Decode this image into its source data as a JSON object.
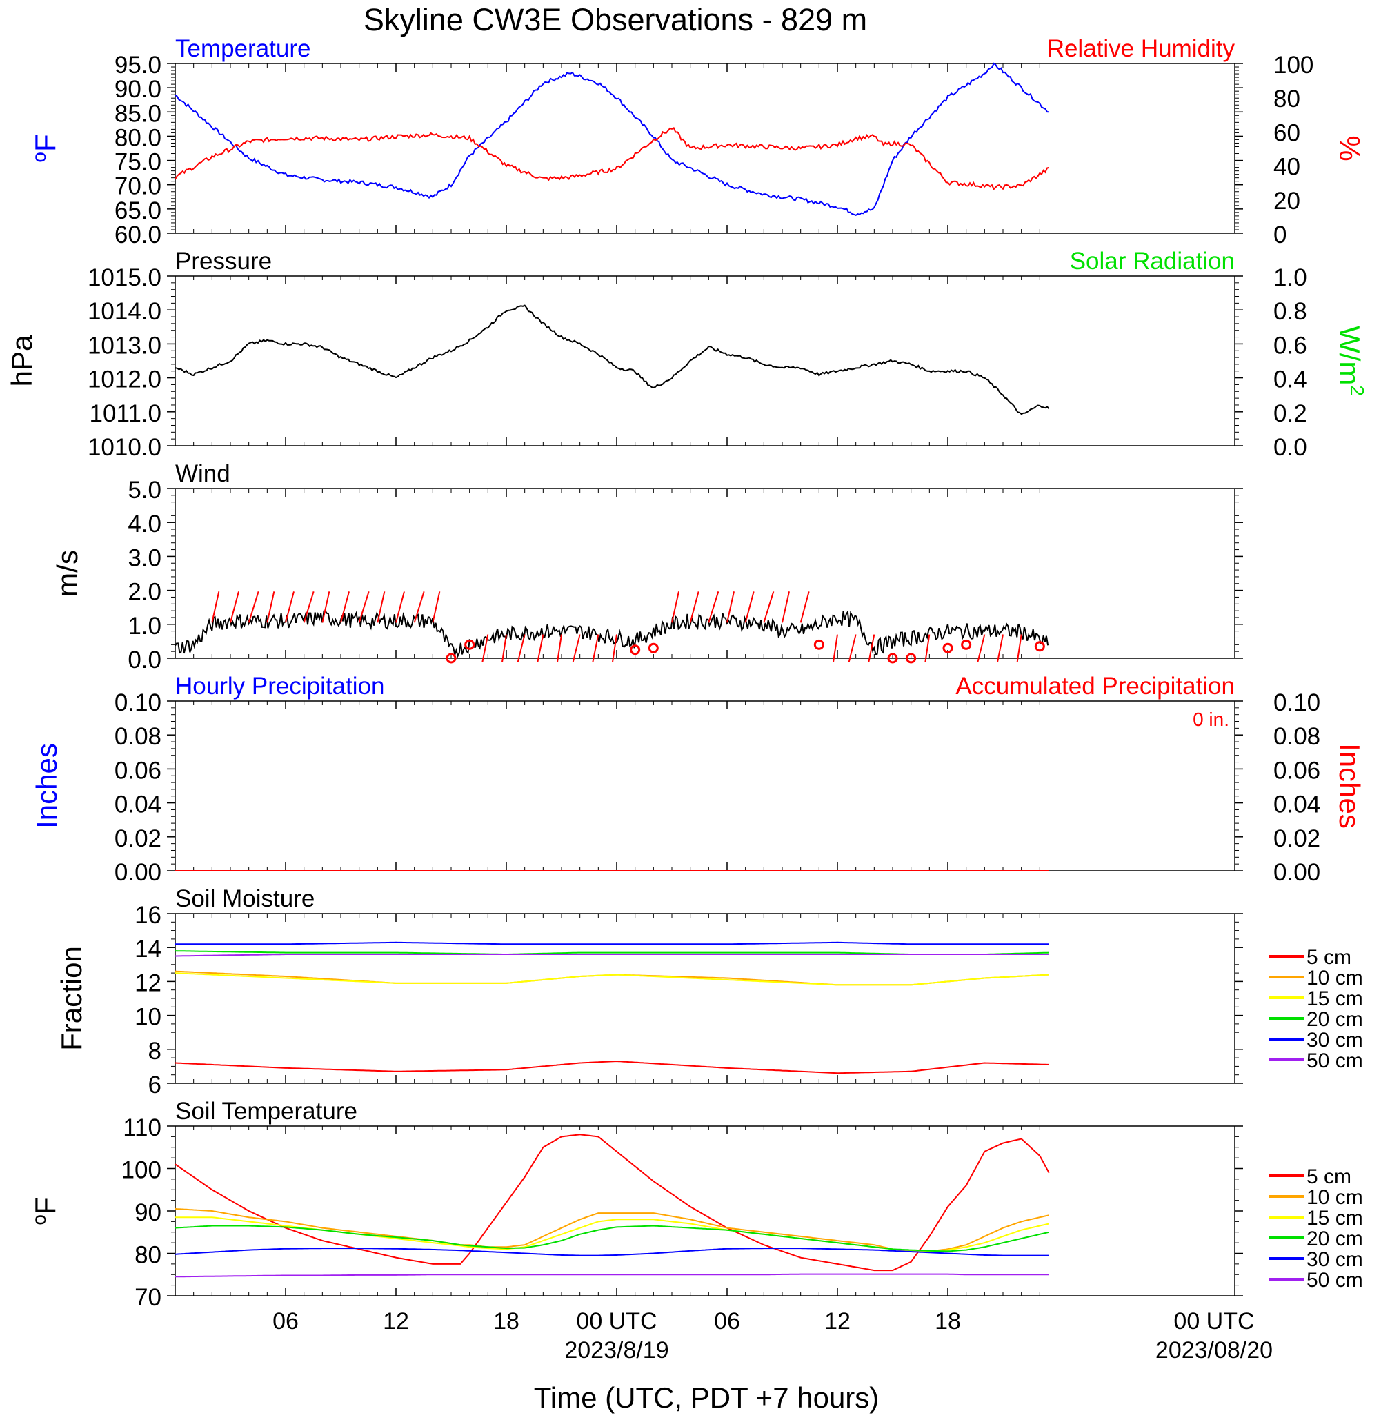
{
  "figure": {
    "title": "Skyline CW3E Observations - 829 m",
    "xlabel": "Time (UTC, PDT +7 hours)",
    "x_tick_labels": [
      "06",
      "12",
      "18",
      "00 UTC",
      "06",
      "12",
      "18",
      "00 UTC"
    ],
    "date_labels": [
      "2023/8/19",
      "2023/08/20"
    ]
  },
  "colors": {
    "temperature": "#0000ff",
    "humidity": "#ff0000",
    "solar": "#00e000",
    "soil_5": "#ff0000",
    "soil_10": "#ffa500",
    "soil_15": "#ffff00",
    "soil_20": "#00e000",
    "soil_30": "#0000ff",
    "soil_50": "#a020f0"
  },
  "chart_data": [
    {
      "type": "line",
      "title_left": "Temperature",
      "title_right": "Relative Humidity",
      "ylabel_left": "°F",
      "ylabel_right": "%",
      "ylim_left": [
        60,
        95
      ],
      "ylim_right": [
        0,
        100
      ],
      "yticks_left": [
        "95.0",
        "90.0",
        "85.0",
        "80.0",
        "75.0",
        "70.0",
        "65.0",
        "60.0"
      ],
      "yticks_right": [
        "100",
        "80",
        "60",
        "40",
        "20",
        "0"
      ],
      "x_hours": [
        0,
        2,
        4,
        6,
        8,
        10,
        12,
        14,
        15,
        16,
        18,
        20,
        21.5,
        23,
        24,
        26,
        27,
        28,
        30,
        32,
        34,
        36,
        37,
        38,
        38.5,
        39,
        40,
        42,
        44,
        44.5,
        46,
        47.5
      ],
      "series": [
        {
          "name": "Temperature",
          "axis": "left",
          "values": [
            88.5,
            82,
            75.5,
            72,
            71,
            70.5,
            69.5,
            67.5,
            70,
            76,
            83,
            91,
            93,
            91,
            88,
            80,
            75,
            73.5,
            70,
            68,
            67,
            65.5,
            64,
            65,
            70,
            75,
            80,
            88,
            93,
            95,
            90,
            85
          ]
        },
        {
          "name": "Relative Humidity",
          "axis": "right",
          "values": [
            33,
            45,
            54,
            56,
            56,
            55,
            57,
            58,
            57,
            56,
            40,
            32,
            33,
            36,
            38,
            55,
            62,
            50,
            52,
            51,
            50,
            52,
            56,
            57,
            52,
            53,
            52,
            30,
            28,
            27,
            28,
            38
          ]
        }
      ]
    },
    {
      "type": "line",
      "title_left": "Pressure",
      "title_right": "Solar Radiation",
      "ylabel_left": "hPa",
      "ylabel_right": "W/m2",
      "ylim_left": [
        1010,
        1015
      ],
      "ylim_right": [
        0,
        1
      ],
      "yticks_left": [
        "1015.0",
        "1014.0",
        "1013.0",
        "1012.0",
        "1011.0",
        "1010.0"
      ],
      "yticks_right": [
        "1.0",
        "0.8",
        "0.6",
        "0.4",
        "0.2",
        "0.0"
      ],
      "x_hours": [
        0,
        1,
        2,
        3,
        4,
        5,
        6,
        7,
        8,
        9,
        10,
        11,
        12,
        13,
        14,
        15,
        16,
        17,
        18,
        19,
        20,
        21,
        22,
        23,
        24,
        25,
        25.5,
        26,
        27,
        28,
        29,
        30,
        31,
        32,
        33,
        34,
        35,
        36,
        37,
        38,
        39,
        40,
        41,
        42,
        43,
        44,
        45,
        46,
        47,
        47.5
      ],
      "series": [
        {
          "name": "Pressure",
          "axis": "left",
          "values": [
            1012.3,
            1012.1,
            1012.3,
            1012.5,
            1013.0,
            1013.1,
            1013.0,
            1013.0,
            1012.9,
            1012.6,
            1012.4,
            1012.2,
            1012.0,
            1012.3,
            1012.6,
            1012.8,
            1013.1,
            1013.5,
            1014.0,
            1014.1,
            1013.6,
            1013.2,
            1013.0,
            1012.7,
            1012.3,
            1012.2,
            1011.9,
            1011.7,
            1012.0,
            1012.5,
            1012.9,
            1012.7,
            1012.6,
            1012.4,
            1012.3,
            1012.3,
            1012.1,
            1012.2,
            1012.3,
            1012.4,
            1012.5,
            1012.4,
            1012.2,
            1012.2,
            1012.2,
            1012.0,
            1011.5,
            1010.9,
            1011.2,
            1011.1
          ]
        }
      ]
    },
    {
      "type": "line",
      "title_left": "Wind",
      "ylabel_left": "m/s",
      "ylim_left": [
        0,
        5
      ],
      "yticks_left": [
        "5.0",
        "4.0",
        "3.0",
        "2.0",
        "1.0",
        "0.0"
      ],
      "x_hours": [
        0,
        1,
        2,
        3,
        4,
        6,
        8,
        10,
        12,
        14,
        14.5,
        15,
        16,
        17,
        18,
        20,
        22,
        24,
        25,
        26,
        27,
        28,
        30,
        32,
        33,
        34,
        35,
        36,
        37,
        38,
        39,
        40,
        42,
        44,
        46,
        47.5
      ],
      "series": [
        {
          "name": "Wind speed",
          "axis": "left",
          "values": [
            0.3,
            0.4,
            1.0,
            1.1,
            1.1,
            1.1,
            1.2,
            1.1,
            1.1,
            1.1,
            0.7,
            0.2,
            0.4,
            0.6,
            0.7,
            0.8,
            0.8,
            0.6,
            0.5,
            0.8,
            1.0,
            1.1,
            1.1,
            1.0,
            0.8,
            0.8,
            1.0,
            1.2,
            1.1,
            0.3,
            0.5,
            0.6,
            0.8,
            0.8,
            0.8,
            0.4
          ]
        }
      ],
      "calm_markers_hours": [
        15,
        16,
        25,
        26,
        35,
        39,
        40,
        42,
        43,
        47
      ],
      "calm_markers_values": [
        0.0,
        0.4,
        0.25,
        0.3,
        0.4,
        0.0,
        0.0,
        0.3,
        0.4,
        0.35
      ],
      "barb_hours": [
        2,
        3,
        4,
        5,
        6,
        7,
        8,
        9,
        10,
        11,
        12,
        13,
        14,
        17,
        18,
        19,
        20,
        21,
        22,
        23,
        24,
        27,
        28,
        29,
        30,
        31,
        32,
        33,
        34,
        36,
        37,
        38,
        41,
        44,
        45,
        46
      ]
    },
    {
      "type": "line",
      "title_left": "Hourly Precipitation",
      "title_right": "Accumulated Precipitation",
      "annotation": "0 in.",
      "ylabel_left": "Inches",
      "ylabel_right": "Inches",
      "ylim_left": [
        0,
        0.1
      ],
      "ylim_right": [
        0,
        0.1
      ],
      "yticks_left": [
        "0.10",
        "0.08",
        "0.06",
        "0.04",
        "0.02",
        "0.00"
      ],
      "yticks_right": [
        "0.10",
        "0.08",
        "0.06",
        "0.04",
        "0.02",
        "0.00"
      ],
      "x_hours": [
        0,
        47.5
      ],
      "series": [
        {
          "name": "Accumulated Precipitation",
          "axis": "left",
          "values": [
            0,
            0
          ]
        }
      ]
    },
    {
      "type": "line",
      "title_left": "Soil Moisture",
      "ylabel_left": "Fraction",
      "ylim_left": [
        6,
        16
      ],
      "yticks_left": [
        "16",
        "14",
        "12",
        "10",
        "8",
        "6"
      ],
      "legend": [
        "5 cm",
        "10 cm",
        "15 cm",
        "20 cm",
        "30 cm",
        "50 cm"
      ],
      "x_hours": [
        0,
        6,
        12,
        18,
        22,
        24,
        30,
        36,
        40,
        44,
        47.5
      ],
      "series": [
        {
          "name": "5 cm",
          "values": [
            7.2,
            6.9,
            6.7,
            6.8,
            7.2,
            7.3,
            6.9,
            6.6,
            6.7,
            7.2,
            7.1
          ]
        },
        {
          "name": "10 cm",
          "values": [
            12.6,
            12.3,
            11.9,
            11.9,
            12.3,
            12.4,
            12.2,
            11.8,
            11.8,
            12.2,
            12.4
          ]
        },
        {
          "name": "15 cm",
          "values": [
            12.5,
            12.2,
            11.9,
            11.9,
            12.3,
            12.4,
            12.1,
            11.8,
            11.8,
            12.2,
            12.4
          ]
        },
        {
          "name": "20 cm",
          "values": [
            13.8,
            13.7,
            13.7,
            13.6,
            13.7,
            13.7,
            13.7,
            13.7,
            13.6,
            13.6,
            13.7
          ]
        },
        {
          "name": "30 cm",
          "values": [
            14.2,
            14.2,
            14.3,
            14.2,
            14.2,
            14.2,
            14.2,
            14.3,
            14.2,
            14.2,
            14.2
          ]
        },
        {
          "name": "50 cm",
          "values": [
            13.5,
            13.6,
            13.6,
            13.6,
            13.6,
            13.6,
            13.6,
            13.6,
            13.6,
            13.6,
            13.6
          ]
        }
      ]
    },
    {
      "type": "line",
      "title_left": "Soil Temperature",
      "ylabel_left": "°F",
      "ylim_left": [
        70,
        110
      ],
      "yticks_left": [
        "110",
        "100",
        "90",
        "80",
        "70"
      ],
      "legend": [
        "5 cm",
        "10 cm",
        "15 cm",
        "20 cm",
        "30 cm",
        "50 cm"
      ],
      "x_hours": [
        0,
        2,
        4,
        6,
        8,
        10,
        12,
        14,
        15.5,
        16,
        17,
        18,
        19,
        20,
        21,
        22,
        23,
        24,
        26,
        28,
        30,
        32,
        34,
        36,
        38,
        39,
        40,
        41,
        42,
        43,
        44,
        45,
        46,
        47,
        47.5
      ],
      "series": [
        {
          "name": "5 cm",
          "values": [
            101,
            95,
            90,
            86,
            83,
            81,
            79,
            77.5,
            77.5,
            80,
            86,
            92,
            98,
            105,
            107.5,
            108,
            107.5,
            104,
            97,
            91,
            86,
            82,
            79,
            77.5,
            76,
            76,
            78,
            84,
            91,
            96,
            104,
            106,
            107,
            103,
            99
          ]
        },
        {
          "name": "10 cm",
          "values": [
            90.5,
            90,
            88.5,
            87.5,
            86,
            85,
            84,
            83,
            82,
            82,
            81.5,
            81.5,
            82,
            84,
            86,
            88,
            89.5,
            89.5,
            89.5,
            88,
            86,
            85,
            84,
            83,
            82,
            81,
            80.5,
            80.5,
            81,
            82,
            84,
            86,
            87.5,
            88.5,
            89
          ]
        },
        {
          "name": "15 cm",
          "values": [
            88.5,
            88.5,
            87.5,
            86.5,
            85.5,
            84.5,
            83.5,
            82.5,
            81.8,
            81.5,
            81.2,
            81,
            81.5,
            83,
            84.5,
            86,
            87.5,
            88,
            88,
            87,
            85.5,
            84.5,
            83.5,
            82.5,
            81.5,
            81,
            80.5,
            80.5,
            80.8,
            81.5,
            82.5,
            84,
            85.5,
            86.5,
            87
          ]
        },
        {
          "name": "20 cm",
          "values": [
            86,
            86.5,
            86.5,
            86.2,
            85.5,
            84.5,
            83.8,
            83,
            82,
            81.8,
            81.5,
            81.2,
            81.3,
            82,
            83,
            84.5,
            85.5,
            86.2,
            86.5,
            86,
            85.5,
            84.5,
            83.5,
            82.5,
            81.5,
            81,
            80.8,
            80.6,
            80.5,
            80.8,
            81.5,
            82.5,
            83.5,
            84.5,
            85
          ]
        },
        {
          "name": "30 cm",
          "values": [
            79.8,
            80.3,
            80.8,
            81.1,
            81.2,
            81.2,
            81.1,
            80.9,
            80.7,
            80.6,
            80.4,
            80.2,
            80,
            79.8,
            79.6,
            79.5,
            79.5,
            79.6,
            80,
            80.6,
            81.1,
            81.2,
            81.2,
            81,
            80.8,
            80.6,
            80.4,
            80.2,
            80,
            79.8,
            79.6,
            79.5,
            79.5,
            79.5,
            79.5
          ]
        },
        {
          "name": "50 cm",
          "values": [
            74.5,
            74.6,
            74.7,
            74.8,
            74.8,
            74.9,
            74.9,
            75,
            75,
            75,
            75,
            75,
            75,
            75,
            75,
            75,
            75,
            75,
            75,
            75,
            75,
            75,
            75.1,
            75.1,
            75.1,
            75.1,
            75.1,
            75.1,
            75.1,
            75,
            75,
            75,
            75,
            75,
            75
          ]
        }
      ]
    }
  ]
}
